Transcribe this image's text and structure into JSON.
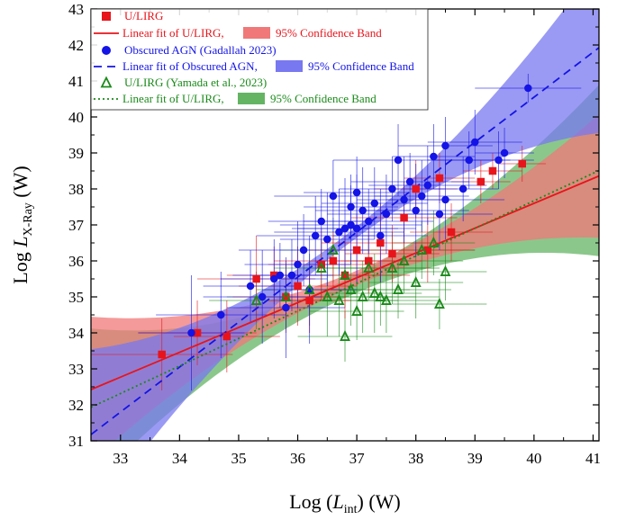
{
  "chart_data": {
    "type": "scatter",
    "xlabel": "Log (L_int) (W)",
    "ylabel": "Log L_X-Ray (W)",
    "xlabel_parts": {
      "pre": "Log (",
      "sym": "L",
      "sub": "int",
      "post": ") (W)"
    },
    "ylabel_parts": {
      "pre": "Log ",
      "sym": "L",
      "sub": "X-Ray",
      "post": " (W)"
    },
    "xlim": [
      32.5,
      41.1
    ],
    "ylim": [
      31,
      43
    ],
    "xticks": [
      33,
      34,
      35,
      36,
      37,
      38,
      39,
      40,
      41
    ],
    "yticks": [
      31,
      32,
      33,
      34,
      35,
      36,
      37,
      38,
      39,
      40,
      41,
      42,
      43
    ],
    "legend_position": "top-left",
    "legend": [
      {
        "label": "U/LIRG",
        "marker": "square",
        "color": "#e8141b"
      },
      {
        "label": "Linear fit of U/LIRG,",
        "line": "solid",
        "color": "#e8141b",
        "band_label": "95% Confidence Band",
        "band_color": "#f07878"
      },
      {
        "label": "Obscured AGN (Gadallah 2023)",
        "marker": "circle",
        "color": "#1414e6"
      },
      {
        "label": "Linear fit of Obscured AGN,",
        "line": "dash",
        "color": "#1414e6",
        "band_label": "95% Confidence Band",
        "band_color": "#7878f0"
      },
      {
        "label": "U/LIRG    (Yamada et al., 2023)",
        "marker": "triangle",
        "color": "#1a8a1a"
      },
      {
        "label": "Linear fit of U/LIRG,",
        "line": "dot",
        "color": "#1a8a1a",
        "band_label": "95% Confidence Band",
        "band_color": "#64b464"
      }
    ],
    "series": [
      {
        "name": "U/LIRG",
        "marker": "square",
        "color": "#e8141b",
        "fit": {
          "slope": 0.69,
          "intercept": 10.0,
          "style": "solid"
        },
        "band": {
          "half_width_mid": 0.2,
          "growth": 0.09,
          "center": 37.0
        },
        "x": [
          33.7,
          34.3,
          34.8,
          35.3,
          35.6,
          35.8,
          36.0,
          36.2,
          36.4,
          36.6,
          36.8,
          37.0,
          37.2,
          37.4,
          37.6,
          37.8,
          38.0,
          38.2,
          38.4,
          38.6,
          39.1,
          39.3,
          39.8
        ],
        "y": [
          33.4,
          34.0,
          33.9,
          35.5,
          35.6,
          35.0,
          35.3,
          34.9,
          35.9,
          36.0,
          35.6,
          36.3,
          36.0,
          36.5,
          36.2,
          37.2,
          38.0,
          36.3,
          38.3,
          36.8,
          38.2,
          38.5,
          38.7
        ],
        "xerr": [
          1.2,
          1.0,
          0.9,
          1.0,
          0.8,
          0.9,
          1.0,
          0.7,
          0.9,
          1.0,
          1.1,
          0.8,
          0.9,
          1.0,
          0.8,
          0.9,
          0.7,
          0.8,
          0.6,
          0.7,
          0.5,
          0.5,
          0.4
        ],
        "yerr": [
          1.0,
          0.9,
          1.0,
          1.2,
          0.8,
          1.0,
          1.1,
          0.9,
          1.0,
          0.8,
          1.2,
          1.0,
          0.9,
          1.1,
          0.8,
          1.0,
          0.8,
          0.9,
          0.7,
          0.8,
          0.6,
          0.5,
          0.5
        ]
      },
      {
        "name": "Obscured AGN (Gadallah 2023)",
        "marker": "circle",
        "color": "#1414e6",
        "fit": {
          "slope": 1.25,
          "intercept": -9.45,
          "style": "dash"
        },
        "band": {
          "half_width_mid": 0.15,
          "growth": 0.12,
          "center": 36.8
        },
        "x": [
          34.2,
          34.7,
          35.2,
          35.4,
          35.6,
          35.7,
          35.8,
          35.9,
          36.0,
          36.1,
          36.2,
          36.3,
          36.4,
          36.5,
          36.6,
          36.7,
          36.8,
          36.9,
          36.9,
          37.0,
          37.0,
          37.1,
          37.2,
          37.3,
          37.4,
          37.5,
          37.6,
          37.7,
          37.8,
          37.9,
          38.0,
          38.1,
          38.2,
          38.3,
          38.4,
          38.5,
          38.5,
          38.8,
          38.9,
          39.0,
          39.4,
          39.5,
          39.9
        ],
        "y": [
          34.0,
          34.5,
          35.3,
          35.0,
          35.5,
          35.6,
          34.7,
          35.6,
          35.9,
          36.3,
          35.2,
          36.7,
          37.1,
          36.6,
          37.8,
          36.8,
          36.9,
          37.5,
          37.0,
          37.9,
          36.9,
          37.4,
          37.1,
          37.6,
          36.7,
          37.3,
          38.0,
          38.8,
          37.7,
          38.2,
          37.4,
          37.8,
          38.1,
          38.9,
          37.3,
          39.2,
          37.7,
          38.0,
          38.8,
          39.3,
          38.8,
          39.0,
          40.8
        ],
        "xerr": [
          0.9,
          1.1,
          0.8,
          1.0,
          0.9,
          0.8,
          1.0,
          0.7,
          0.9,
          1.1,
          0.8,
          1.0,
          0.9,
          0.8,
          1.0,
          1.1,
          0.9,
          0.8,
          1.2,
          0.9,
          1.0,
          0.8,
          1.1,
          0.9,
          0.8,
          1.0,
          0.9,
          1.1,
          0.8,
          1.0,
          0.9,
          0.8,
          1.0,
          0.7,
          0.9,
          0.8,
          1.0,
          0.6,
          0.7,
          0.8,
          0.6,
          0.5,
          0.9
        ],
        "yerr": [
          1.6,
          1.2,
          1.0,
          1.3,
          1.1,
          0.9,
          1.4,
          1.0,
          1.2,
          1.0,
          1.5,
          1.1,
          0.9,
          1.3,
          1.0,
          1.2,
          1.4,
          0.9,
          1.1,
          1.0,
          1.5,
          1.2,
          0.9,
          1.0,
          1.3,
          1.1,
          0.9,
          1.0,
          1.2,
          0.8,
          1.3,
          1.0,
          1.1,
          0.9,
          1.0,
          0.8,
          1.1,
          0.9,
          0.8,
          0.9,
          0.8,
          0.7,
          0.4
        ]
      },
      {
        "name": "U/LIRG (Yamada et al., 2023)",
        "marker": "triangle",
        "color": "#1a8a1a",
        "fit": {
          "slope": 0.765,
          "intercept": 7.07,
          "style": "dot"
        },
        "band": {
          "half_width_mid": 0.25,
          "growth": 0.11,
          "center": 36.7
        },
        "x": [
          35.3,
          35.8,
          36.2,
          36.4,
          36.5,
          36.6,
          36.7,
          36.8,
          36.8,
          36.9,
          37.0,
          37.1,
          37.2,
          37.3,
          37.4,
          37.5,
          37.6,
          37.7,
          37.8,
          38.0,
          38.1,
          38.3,
          38.4,
          38.5
        ],
        "y": [
          34.9,
          35.0,
          35.2,
          35.8,
          35.0,
          36.3,
          34.9,
          33.9,
          35.6,
          35.2,
          34.6,
          35.0,
          35.8,
          35.1,
          35.0,
          34.9,
          35.8,
          35.2,
          36.0,
          35.4,
          36.3,
          36.5,
          34.8,
          35.7
        ],
        "xerr": [
          0.8,
          1.0,
          0.9,
          0.8,
          1.1,
          0.9,
          1.0,
          0.8,
          0.9,
          1.0,
          0.8,
          0.9,
          1.1,
          0.8,
          1.0,
          0.9,
          0.8,
          0.9,
          1.0,
          0.8,
          0.9,
          0.7,
          0.8,
          0.7
        ],
        "yerr": [
          0.8,
          0.9,
          1.0,
          0.8,
          1.1,
          0.9,
          1.0,
          0.7,
          0.9,
          1.0,
          0.8,
          1.0,
          0.9,
          1.1,
          0.8,
          0.9,
          1.0,
          0.8,
          0.9,
          1.0,
          0.8,
          0.9,
          0.7,
          0.8
        ]
      }
    ]
  }
}
